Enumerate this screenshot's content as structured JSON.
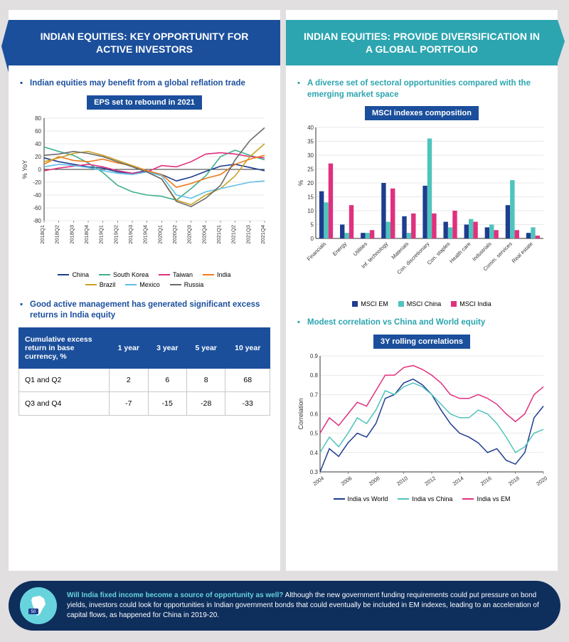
{
  "left": {
    "banner": "INDIAN EQUITIES: KEY OPPORTUNITY FOR ACTIVE INVESTORS",
    "banner_bg": "#1b4f9c",
    "bullet1": "Indian equities may benefit from a global reflation trade",
    "chart1": {
      "title": "EPS set to rebound in 2021",
      "ylabel": "% YoY",
      "ylim": [
        -80,
        80
      ],
      "ytick_step": 20,
      "x_labels": [
        "2018Q1",
        "2018Q2",
        "2018Q3",
        "2018Q4",
        "2019Q1",
        "2019Q2",
        "2019Q3",
        "2019Q4",
        "2020Q1",
        "2020Q2",
        "2020Q3",
        "2020Q4",
        "2021Q1",
        "2021Q2",
        "2021Q3",
        "2021Q4"
      ],
      "series": [
        {
          "name": "China",
          "color": "#1e3d8f",
          "values": [
            18,
            12,
            8,
            4,
            2,
            -4,
            -6,
            -2,
            -8,
            -18,
            -12,
            -3,
            5,
            8,
            3,
            -2
          ]
        },
        {
          "name": "South Korea",
          "color": "#3fae8f",
          "values": [
            35,
            28,
            22,
            10,
            -5,
            -25,
            -35,
            -40,
            -42,
            -48,
            -30,
            -10,
            20,
            30,
            22,
            15
          ]
        },
        {
          "name": "Taiwan",
          "color": "#e0307e",
          "values": [
            -2,
            2,
            5,
            8,
            4,
            -2,
            -6,
            -4,
            6,
            4,
            12,
            24,
            26,
            24,
            20,
            18
          ]
        },
        {
          "name": "India",
          "color": "#ee7c1c",
          "values": [
            8,
            20,
            14,
            12,
            16,
            10,
            6,
            -2,
            -8,
            -28,
            -22,
            -14,
            -8,
            8,
            16,
            22
          ]
        },
        {
          "name": "Brazil",
          "color": "#c9a227",
          "values": [
            12,
            18,
            25,
            28,
            22,
            14,
            6,
            -4,
            -15,
            -48,
            -55,
            -40,
            -30,
            -10,
            20,
            40
          ]
        },
        {
          "name": "Mexico",
          "color": "#5fbfe8",
          "values": [
            4,
            8,
            6,
            3,
            -2,
            -6,
            -8,
            -4,
            -10,
            -40,
            -45,
            -35,
            -30,
            -25,
            -20,
            -18
          ]
        },
        {
          "name": "Russia",
          "color": "#6b6b6b",
          "values": [
            22,
            24,
            28,
            25,
            20,
            12,
            4,
            -4,
            -15,
            -50,
            -58,
            -45,
            -25,
            15,
            45,
            65
          ]
        }
      ]
    },
    "bullet2": "Good active management has generated significant excess returns in India equity",
    "table": {
      "header": [
        "Cumulative excess return in base currency, %",
        "1 year",
        "3 year",
        "5 year",
        "10 year"
      ],
      "rows": [
        [
          "Q1 and Q2",
          "2",
          "6",
          "8",
          "68"
        ],
        [
          "Q3 and Q4",
          "-7",
          "-15",
          "-28",
          "-33"
        ]
      ]
    }
  },
  "right": {
    "banner": "INDIAN EQUITIES: PROVIDE DIVERSIFICATION IN A GLOBAL PORTFOLIO",
    "banner_bg": "#2ca5b0",
    "bullet1": "A diverse set of sectoral opportunities compared with the emerging market space",
    "chart1": {
      "title": "MSCI indexes composition",
      "ylabel": "%",
      "ylim": [
        0,
        40
      ],
      "ytick_step": 5,
      "categories": [
        "Financials",
        "Energy",
        "Utilities",
        "Inf. technology",
        "Materials",
        "Con. discretionary",
        "Con. staples",
        "Health care",
        "Industrials",
        "Comm. services",
        "Real estate"
      ],
      "series": [
        {
          "name": "MSCI EM",
          "color": "#1e3d8f",
          "values": [
            17,
            5,
            2,
            20,
            8,
            19,
            6,
            5,
            4,
            12,
            2
          ]
        },
        {
          "name": "MSCI China",
          "color": "#4fc4bc",
          "values": [
            13,
            2,
            2,
            6,
            2,
            36,
            4,
            7,
            5,
            21,
            4
          ]
        },
        {
          "name": "MSCI India",
          "color": "#e0307e",
          "values": [
            27,
            12,
            3,
            18,
            9,
            9,
            10,
            6,
            3,
            3,
            1
          ]
        }
      ]
    },
    "bullet2": "Modest correlation vs China and World equity",
    "chart2": {
      "title": "3Y rolling correlations",
      "ylabel": "Correlation",
      "ylim": [
        0.3,
        0.9
      ],
      "ytick_step": 0.1,
      "x_labels": [
        "2004",
        "2006",
        "2008",
        "2010",
        "2012",
        "2014",
        "2016",
        "2018",
        "2020"
      ],
      "series": [
        {
          "name": "India vs World",
          "color": "#1e3d8f",
          "values": [
            0.3,
            0.42,
            0.38,
            0.45,
            0.5,
            0.48,
            0.55,
            0.68,
            0.7,
            0.76,
            0.78,
            0.75,
            0.7,
            0.62,
            0.55,
            0.5,
            0.48,
            0.45,
            0.4,
            0.42,
            0.36,
            0.34,
            0.4,
            0.58,
            0.64
          ]
        },
        {
          "name": "India vs China",
          "color": "#4fc4bc",
          "values": [
            0.4,
            0.48,
            0.43,
            0.5,
            0.58,
            0.55,
            0.62,
            0.72,
            0.7,
            0.74,
            0.76,
            0.74,
            0.7,
            0.65,
            0.6,
            0.58,
            0.58,
            0.62,
            0.6,
            0.55,
            0.48,
            0.4,
            0.43,
            0.5,
            0.52
          ]
        },
        {
          "name": "India vs EM",
          "color": "#e0307e",
          "values": [
            0.5,
            0.58,
            0.54,
            0.6,
            0.66,
            0.64,
            0.72,
            0.8,
            0.8,
            0.84,
            0.85,
            0.83,
            0.8,
            0.76,
            0.7,
            0.68,
            0.68,
            0.7,
            0.68,
            0.65,
            0.6,
            0.56,
            0.6,
            0.7,
            0.74
          ]
        }
      ]
    }
  },
  "footer": {
    "lead": "Will India fixed income become a source of opportunity as well?",
    "body": " Although the new government funding requirements could put pressure on bond yields, investors could look for opportunities in Indian government bonds that could eventually be included in EM indexes, leading to an acceleration of capital flows, as happened for China in 2019-20."
  }
}
